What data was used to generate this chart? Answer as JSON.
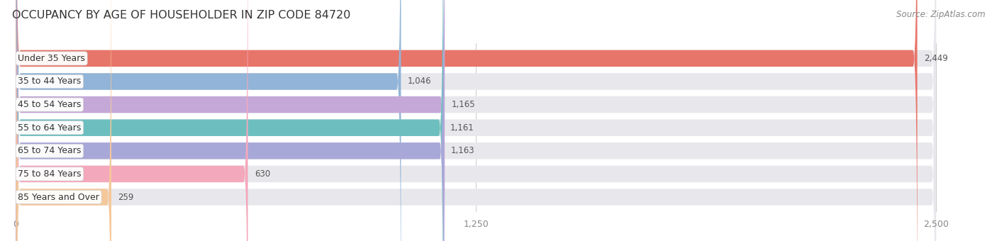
{
  "title": "OCCUPANCY BY AGE OF HOUSEHOLDER IN ZIP CODE 84720",
  "source": "Source: ZipAtlas.com",
  "categories": [
    "Under 35 Years",
    "35 to 44 Years",
    "45 to 54 Years",
    "55 to 64 Years",
    "65 to 74 Years",
    "75 to 84 Years",
    "85 Years and Over"
  ],
  "values": [
    2449,
    1046,
    1165,
    1161,
    1163,
    630,
    259
  ],
  "bar_colors": [
    "#e8756a",
    "#91b4d8",
    "#c4a8d8",
    "#6dbfbf",
    "#a8a8d8",
    "#f4a8bc",
    "#f5c89a"
  ],
  "bg_color": "#ffffff",
  "bar_bg_color": "#e8e8ec",
  "xlim": [
    0,
    2500
  ],
  "xticks": [
    0,
    1250,
    2500
  ],
  "title_fontsize": 11.5,
  "label_fontsize": 9,
  "value_fontsize": 8.5,
  "source_fontsize": 8.5
}
